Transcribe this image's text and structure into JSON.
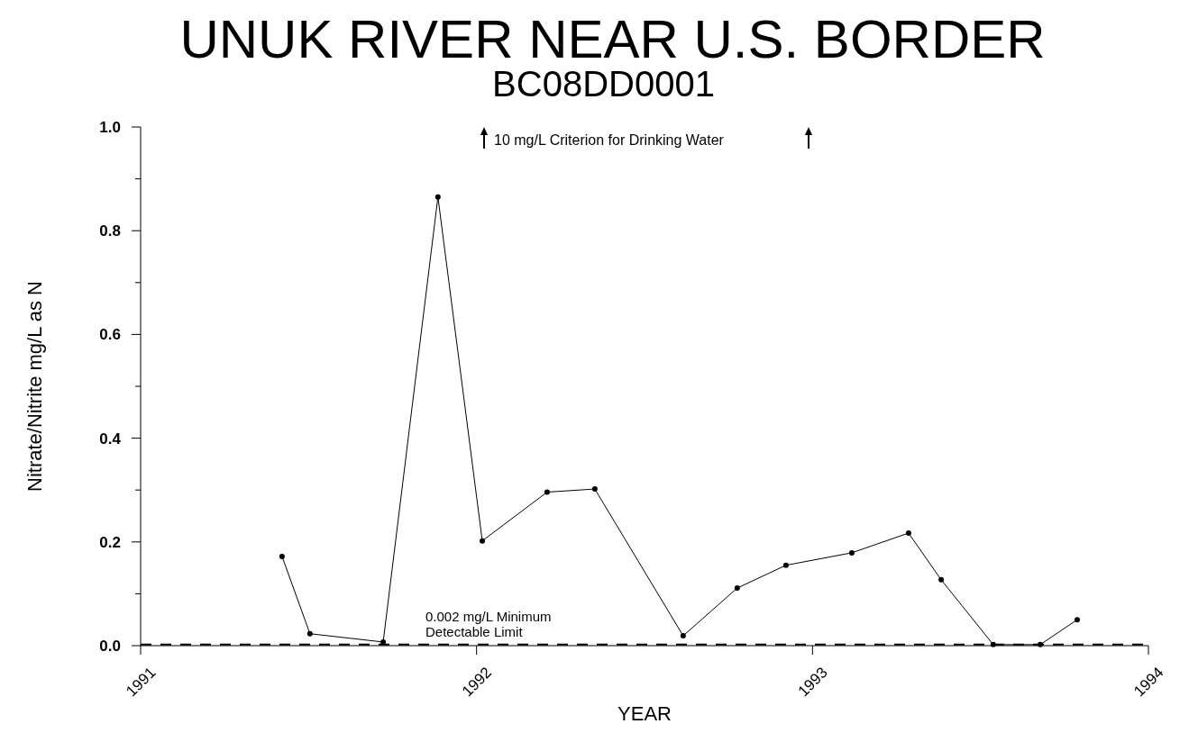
{
  "chart_data": {
    "type": "line",
    "title": "UNUK RIVER NEAR U.S. BORDER",
    "subtitle": "BC08DD0001",
    "xlabel": "YEAR",
    "ylabel": "Nitrate/Nitrite mg/L as N",
    "x": [
      1991.421,
      1991.504,
      1991.722,
      1991.885,
      1992.017,
      1992.21,
      1992.352,
      1992.615,
      1992.776,
      1992.921,
      1993.117,
      1993.286,
      1993.383,
      1993.538,
      1993.678,
      1993.788
    ],
    "series": [
      {
        "color": "#000000",
        "values": [
          0.172,
          0.023,
          0.007,
          0.865,
          0.202,
          0.296,
          0.302,
          0.019,
          0.111,
          0.155,
          0.179,
          0.217,
          0.127,
          0.002,
          0.002,
          0.05
        ]
      }
    ],
    "xlim": [
      1991,
      1994
    ],
    "xticks": [
      1991,
      1992,
      1993,
      1994
    ],
    "ylim": [
      0,
      1
    ],
    "yticks": [
      {
        "value": 0,
        "label": "0.0"
      },
      {
        "value": 0.1,
        "label": null
      },
      0.2,
      {
        "value": 0.3,
        "label": null
      },
      0.4,
      {
        "value": 0.5,
        "label": null
      },
      0.6,
      {
        "value": 0.7,
        "label": null
      },
      0.8,
      {
        "value": 0.9,
        "label": null
      },
      {
        "value": 1,
        "label": "1.0"
      }
    ],
    "ref_lines": [
      {
        "axis": "y",
        "value": 0.002,
        "label": "0.002 mg/L Minimum\nDetectable Limit",
        "line_style": "dashed",
        "color": "#000000"
      }
    ],
    "annotations": [
      "10 mg/L Criterion for Drinking Water"
    ],
    "grid": false,
    "marker": "circle",
    "line_style": "solid"
  }
}
